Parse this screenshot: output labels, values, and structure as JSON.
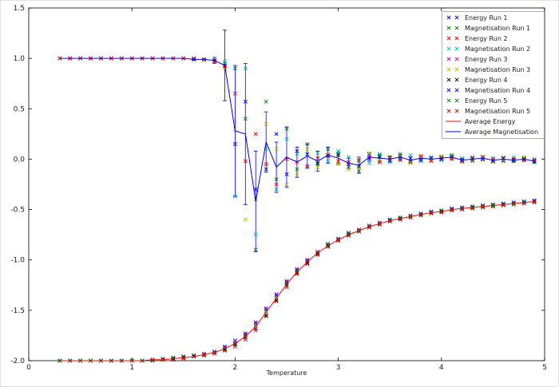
{
  "window": {
    "background": "#ffffff",
    "border_color": "#e2e2e2",
    "axis_color": "#000000",
    "errorbar_color": "#0000ff",
    "legend_border_color": "#9a9ab0"
  },
  "chart_data": {
    "type": "line",
    "title": "",
    "xlabel": "Temperature",
    "ylabel": "",
    "xlim": [
      0,
      5
    ],
    "ylim": [
      -2.0,
      1.5
    ],
    "xticks": [
      0,
      1,
      2,
      3,
      4,
      5
    ],
    "xtick_labels": [
      "0",
      "1",
      "2",
      "3",
      "4",
      "5"
    ],
    "yticks": [
      1.5,
      1.0,
      0.5,
      0.0,
      -0.5,
      -1.0,
      -1.5,
      -2.0
    ],
    "ytick_labels": [
      "1.5",
      "1.0",
      "0.5",
      "0.0",
      "-0.5",
      "-1.0",
      "-1.5",
      "-2.0"
    ],
    "grid": false,
    "legend_position": "upper right",
    "x": [
      0.3,
      0.4,
      0.5,
      0.6,
      0.7,
      0.8,
      0.9,
      1.0,
      1.1,
      1.2,
      1.3,
      1.4,
      1.5,
      1.6,
      1.7,
      1.8,
      1.9,
      2.0,
      2.1,
      2.2,
      2.3,
      2.4,
      2.5,
      2.6,
      2.7,
      2.8,
      2.9,
      3.0,
      3.1,
      3.2,
      3.3,
      3.4,
      3.5,
      3.6,
      3.7,
      3.8,
      3.9,
      4.0,
      4.1,
      4.2,
      4.3,
      4.4,
      4.5,
      4.6,
      4.7,
      4.8,
      4.9
    ],
    "series": [
      {
        "name": "Energy Run 1",
        "type": "scatter",
        "marker": "x",
        "color": "#0000ff",
        "values": [
          -2.0,
          -2.0,
          -2.0,
          -2.0,
          -2.0,
          -2.0,
          -2.0,
          -2.0,
          -2.0,
          -1.99,
          -1.99,
          -1.98,
          -1.97,
          -1.95,
          -1.94,
          -1.91,
          -1.86,
          -1.8,
          -1.73,
          -1.62,
          -1.49,
          -1.35,
          -1.22,
          -1.1,
          -1.0,
          -0.92,
          -0.85,
          -0.79,
          -0.74,
          -0.7,
          -0.66,
          -0.63,
          -0.6,
          -0.58,
          -0.56,
          -0.54,
          -0.52,
          -0.51,
          -0.49,
          -0.48,
          -0.47,
          -0.46,
          -0.45,
          -0.44,
          -0.43,
          -0.42,
          -0.41
        ]
      },
      {
        "name": "Magnetisation Run 1",
        "type": "scatter",
        "marker": "x",
        "color": "#008000",
        "values": [
          1.0,
          1.0,
          1.0,
          1.0,
          1.0,
          1.0,
          1.0,
          1.0,
          1.0,
          1.0,
          1.0,
          1.0,
          1.0,
          0.99,
          0.99,
          0.98,
          0.95,
          0.9,
          0.4,
          -0.9,
          0.57,
          -0.2,
          0.3,
          -0.1,
          0.15,
          -0.05,
          0.1,
          0.05,
          -0.08,
          -0.12,
          0.05,
          0.03,
          0.02,
          0.05,
          -0.03,
          0.03,
          0.01,
          0.02,
          0.04,
          -0.02,
          0.01,
          0.02,
          -0.02,
          0.01,
          -0.02,
          0.01,
          -0.03
        ]
      },
      {
        "name": "Energy Run 2",
        "type": "scatter",
        "marker": "x",
        "color": "#ff0000",
        "values": [
          -2.0,
          -2.0,
          -2.0,
          -2.0,
          -2.0,
          -2.0,
          -2.0,
          -2.0,
          -2.0,
          -2.0,
          -1.99,
          -1.99,
          -1.98,
          -1.96,
          -1.95,
          -1.93,
          -1.9,
          -1.86,
          -1.79,
          -1.7,
          -1.56,
          -1.41,
          -1.27,
          -1.14,
          -1.04,
          -0.95,
          -0.87,
          -0.81,
          -0.76,
          -0.72,
          -0.68,
          -0.65,
          -0.62,
          -0.6,
          -0.58,
          -0.56,
          -0.54,
          -0.53,
          -0.51,
          -0.5,
          -0.49,
          -0.48,
          -0.47,
          -0.46,
          -0.45,
          -0.44,
          -0.43
        ]
      },
      {
        "name": "Magnetisation Run 2",
        "type": "scatter",
        "marker": "x",
        "color": "#00bcbc",
        "values": [
          1.0,
          1.0,
          1.0,
          1.0,
          1.0,
          1.0,
          1.0,
          1.0,
          1.0,
          1.0,
          1.0,
          1.0,
          1.0,
          1.0,
          0.99,
          0.98,
          0.97,
          -0.37,
          0.9,
          -0.75,
          0.1,
          -0.3,
          0.2,
          0.05,
          -0.08,
          0.06,
          -0.02,
          0.08,
          0.02,
          -0.02,
          -0.04,
          0.05,
          -0.03,
          0.01,
          0.04,
          -0.02,
          0.02,
          -0.01,
          0.03,
          0.01,
          -0.02,
          0.02,
          0.01,
          -0.01,
          0.02,
          -0.01,
          0.0
        ]
      },
      {
        "name": "Energy Run 3",
        "type": "scatter",
        "marker": "x",
        "color": "#bc00bc",
        "values": [
          -2.0,
          -2.0,
          -2.0,
          -2.0,
          -2.0,
          -2.0,
          -2.0,
          -2.0,
          -2.0,
          -1.99,
          -1.98,
          -1.98,
          -1.97,
          -1.96,
          -1.93,
          -1.91,
          -1.87,
          -1.82,
          -1.74,
          -1.63,
          -1.48,
          -1.34,
          -1.21,
          -1.09,
          -1.01,
          -0.92,
          -0.84,
          -0.79,
          -0.73,
          -0.7,
          -0.66,
          -0.63,
          -0.61,
          -0.59,
          -0.56,
          -0.55,
          -0.53,
          -0.51,
          -0.5,
          -0.49,
          -0.48,
          -0.47,
          -0.46,
          -0.45,
          -0.44,
          -0.43,
          -0.42
        ]
      },
      {
        "name": "Magnetisation Run 3",
        "type": "scatter",
        "marker": "x",
        "color": "#bcbc00",
        "values": [
          1.0,
          1.0,
          1.0,
          1.0,
          1.0,
          1.0,
          1.0,
          1.0,
          1.0,
          1.0,
          1.0,
          1.0,
          1.0,
          0.99,
          0.98,
          0.97,
          0.9,
          0.3,
          -0.6,
          -0.4,
          0.35,
          0.1,
          -0.25,
          -0.15,
          0.1,
          -0.08,
          0.05,
          -0.05,
          -0.1,
          -0.08,
          0.06,
          -0.02,
          0.01,
          0.03,
          -0.04,
          0.02,
          -0.01,
          0.03,
          0.01,
          -0.03,
          0.02,
          -0.01,
          -0.03,
          0.02,
          -0.01,
          0.02,
          -0.02
        ]
      },
      {
        "name": "Energy Run 4",
        "type": "scatter",
        "marker": "x",
        "color": "#000000",
        "values": [
          -2.0,
          -2.0,
          -2.0,
          -2.0,
          -2.0,
          -2.0,
          -2.0,
          -2.0,
          -2.0,
          -2.0,
          -1.99,
          -1.98,
          -1.96,
          -1.95,
          -1.94,
          -1.92,
          -1.89,
          -1.84,
          -1.77,
          -1.68,
          -1.55,
          -1.4,
          -1.25,
          -1.13,
          -1.03,
          -0.94,
          -0.86,
          -0.8,
          -0.75,
          -0.71,
          -0.67,
          -0.64,
          -0.61,
          -0.59,
          -0.57,
          -0.55,
          -0.53,
          -0.52,
          -0.5,
          -0.49,
          -0.48,
          -0.47,
          -0.46,
          -0.45,
          -0.44,
          -0.43,
          -0.42
        ]
      },
      {
        "name": "Magnetisation Run 4",
        "type": "scatter",
        "marker": "x",
        "color": "#0000ff",
        "values": [
          1.0,
          1.0,
          1.0,
          1.0,
          1.0,
          1.0,
          1.0,
          1.0,
          1.0,
          1.0,
          1.0,
          1.0,
          1.0,
          0.99,
          0.99,
          0.98,
          0.93,
          0.15,
          0.57,
          -0.3,
          -0.1,
          0.25,
          -0.15,
          0.08,
          0.05,
          -0.04,
          0.03,
          0.04,
          -0.05,
          -0.07,
          0.01,
          0.02,
          -0.01,
          0.02,
          0.01,
          -0.01,
          0.01,
          0.0,
          0.02,
          -0.01,
          0.01,
          0.0,
          -0.02,
          0.01,
          -0.01,
          0.0,
          -0.02
        ]
      },
      {
        "name": "Energy Run 5",
        "type": "scatter",
        "marker": "x",
        "color": "#008000",
        "values": [
          -2.0,
          -2.0,
          -2.0,
          -2.0,
          -2.0,
          -2.0,
          -2.0,
          -2.0,
          -2.0,
          -2.0,
          -1.99,
          -1.97,
          -1.97,
          -1.96,
          -1.94,
          -1.92,
          -1.88,
          -1.83,
          -1.75,
          -1.65,
          -1.51,
          -1.37,
          -1.23,
          -1.11,
          -1.02,
          -0.93,
          -0.85,
          -0.8,
          -0.74,
          -0.71,
          -0.67,
          -0.64,
          -0.61,
          -0.58,
          -0.57,
          -0.55,
          -0.53,
          -0.51,
          -0.5,
          -0.49,
          -0.48,
          -0.47,
          -0.46,
          -0.45,
          -0.44,
          -0.43,
          -0.42
        ]
      },
      {
        "name": "Magnetisation Run 5",
        "type": "scatter",
        "marker": "x",
        "color": "#ff0000",
        "values": [
          1.0,
          1.0,
          1.0,
          1.0,
          1.0,
          1.0,
          1.0,
          1.0,
          1.0,
          1.0,
          1.0,
          1.0,
          1.0,
          1.0,
          0.99,
          0.97,
          0.92,
          0.65,
          -0.02,
          0.25,
          -0.05,
          -0.25,
          0.0,
          -0.03,
          -0.07,
          0.01,
          0.04,
          -0.02,
          -0.03,
          -0.01,
          0.02,
          -0.03,
          0.01,
          -0.01,
          -0.02,
          0.03,
          -0.02,
          0.01,
          0.0,
          -0.02,
          -0.01,
          0.02,
          0.0,
          -0.02,
          0.0,
          -0.01,
          -0.01
        ]
      },
      {
        "name": "Average Energy",
        "type": "line",
        "marker": "none",
        "color": "#ff0000",
        "values": [
          -2.0,
          -2.0,
          -2.0,
          -2.0,
          -2.0,
          -2.0,
          -2.0,
          -2.0,
          -2.0,
          -1.99,
          -1.99,
          -1.98,
          -1.97,
          -1.96,
          -1.94,
          -1.92,
          -1.88,
          -1.83,
          -1.76,
          -1.66,
          -1.52,
          -1.38,
          -1.24,
          -1.12,
          -1.02,
          -0.93,
          -0.86,
          -0.8,
          -0.75,
          -0.71,
          -0.67,
          -0.64,
          -0.61,
          -0.59,
          -0.57,
          -0.55,
          -0.53,
          -0.52,
          -0.5,
          -0.49,
          -0.48,
          -0.47,
          -0.46,
          -0.45,
          -0.44,
          -0.43,
          -0.42
        ]
      },
      {
        "name": "Average Magnetisation",
        "type": "line",
        "marker": "none",
        "color": "#0000ff",
        "values": [
          1.0,
          1.0,
          1.0,
          1.0,
          1.0,
          1.0,
          1.0,
          1.0,
          1.0,
          1.0,
          1.0,
          1.0,
          1.0,
          0.99,
          0.99,
          0.98,
          0.93,
          0.28,
          0.25,
          -0.42,
          0.17,
          -0.08,
          0.02,
          -0.03,
          0.03,
          -0.02,
          0.04,
          0.01,
          -0.04,
          -0.06,
          0.02,
          0.01,
          0.0,
          0.02,
          -0.01,
          0.01,
          0.0,
          0.01,
          0.02,
          -0.01,
          0.0,
          0.01,
          -0.01,
          0.0,
          -0.01,
          0.0,
          -0.02
        ],
        "yerr": [
          0,
          0,
          0,
          0,
          0,
          0,
          0,
          0,
          0,
          0,
          0,
          0,
          0,
          0.01,
          0.01,
          0.03,
          0.35,
          0.65,
          0.7,
          0.5,
          0.3,
          0.25,
          0.3,
          0.15,
          0.12,
          0.1,
          0.08,
          0.06,
          0.05,
          0.08,
          0.04,
          0.04,
          0.03,
          0.03,
          0.03,
          0.02,
          0.02,
          0.02,
          0.02,
          0.02,
          0.02,
          0.02,
          0.02,
          0.02,
          0.02,
          0.02,
          0.02
        ]
      }
    ]
  }
}
